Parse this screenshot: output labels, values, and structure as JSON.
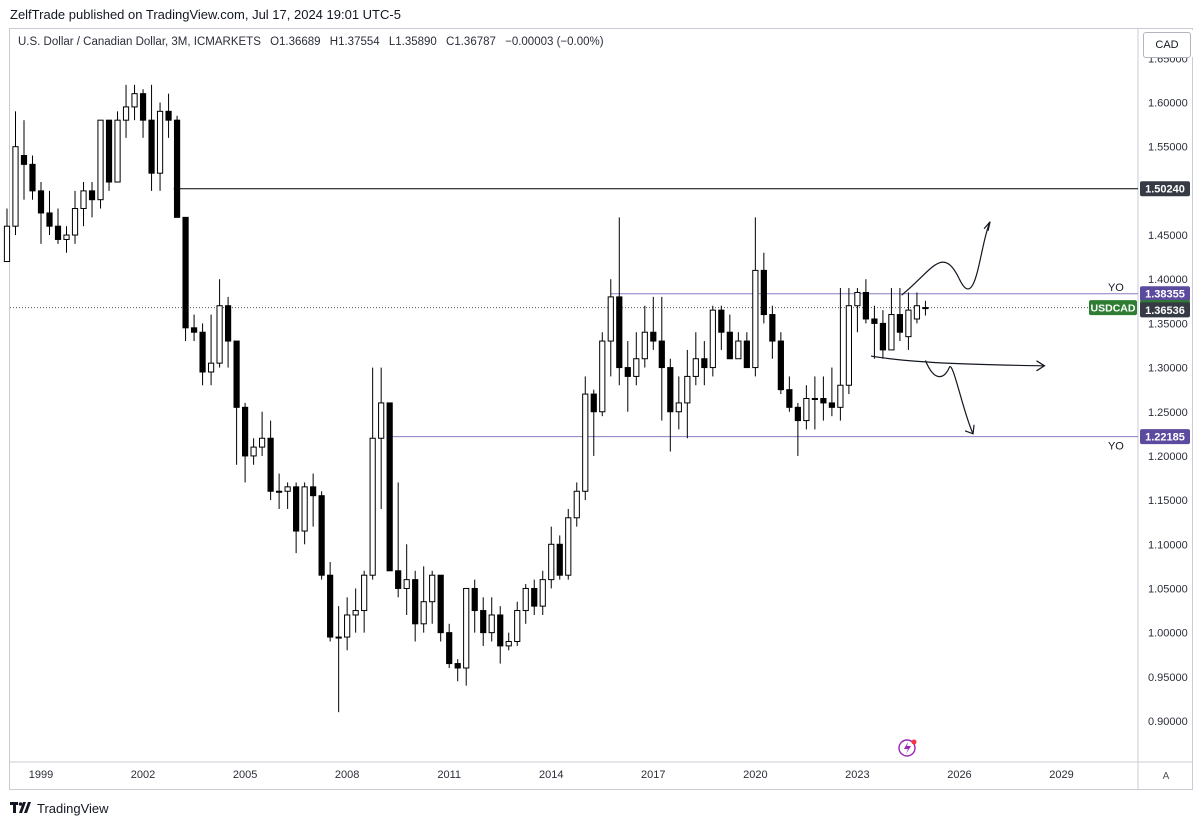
{
  "publisher_line": "ZelfTrade published on TradingView.com, Jul 17, 2024 19:01 UTC-5",
  "legend": {
    "symbol": "U.S. Dollar / Canadian Dollar, 3M, ICMARKETS",
    "open": "O1.36689",
    "high": "H1.37554",
    "low": "L1.35890",
    "close": "C1.36787",
    "change": "−0.00003 (−0.00%)"
  },
  "currency_button": "CAD",
  "axis_mode_button": "A",
  "footer_brand": "TradingView",
  "colors": {
    "candle_up_fill": "#ffffff",
    "candle_down_fill": "#000000",
    "candle_border": "#000000",
    "level_line_purple": "#8e7cc3",
    "level_line_black": "#000000",
    "label_dark": "#363a45",
    "label_price_green": "#2e7d32",
    "label_purple": "#5b4a9e"
  },
  "chart_data": {
    "type": "candlestick",
    "interval": "3M",
    "y_axis": {
      "min": 0.88,
      "max": 1.66,
      "ticks": [
        1.6,
        1.55,
        1.5,
        1.45,
        1.4,
        1.35,
        1.3,
        1.25,
        1.2,
        1.15,
        1.1,
        1.05,
        1.0,
        0.95,
        0.9
      ],
      "tick_labels": [
        "1.60000",
        "1.55000",
        "1.50000",
        "1.45000",
        "1.40000",
        "1.35000",
        "1.30000",
        "1.25000",
        "1.20000",
        "1.15000",
        "1.10000",
        "1.05000",
        "1.00000",
        "0.95000",
        "0.90000"
      ]
    },
    "x_axis": {
      "tick_years": [
        1999,
        2002,
        2005,
        2008,
        2011,
        2014,
        2017,
        2020,
        2023,
        2026,
        2029
      ],
      "tick_labels": [
        "1999",
        "2002",
        "2005",
        "2008",
        "2011",
        "2014",
        "2017",
        "2020",
        "2023",
        "2026",
        "2029"
      ]
    },
    "horizontal_levels": [
      {
        "price": 1.5024,
        "label": "1.50240",
        "style": "black",
        "from_year": 2002.9
      },
      {
        "price": 1.38355,
        "label": "1.38355",
        "style": "purple",
        "from_year": 2015.75
      },
      {
        "price": 1.22185,
        "label": "1.22185",
        "style": "purple",
        "from_year": 2009.25
      }
    ],
    "price_labels": [
      {
        "price": 1.36787,
        "label": "1.36787",
        "symbol": "USDCAD"
      },
      {
        "price": 1.36536,
        "label": "1.36536"
      }
    ],
    "text_annotations": [
      {
        "text": "YO",
        "price": 1.212,
        "year": 2030.6
      },
      {
        "text": "YO",
        "price": 1.391,
        "year": 2030.6
      }
    ],
    "candles": [
      {
        "t": 1998.0,
        "o": 1.42,
        "h": 1.48,
        "l": 1.42,
        "c": 1.46
      },
      {
        "t": 1998.25,
        "o": 1.46,
        "h": 1.59,
        "l": 1.45,
        "c": 1.55
      },
      {
        "t": 1998.5,
        "o": 1.54,
        "h": 1.58,
        "l": 1.49,
        "c": 1.53
      },
      {
        "t": 1998.75,
        "o": 1.53,
        "h": 1.54,
        "l": 1.49,
        "c": 1.5
      },
      {
        "t": 1999.0,
        "o": 1.5,
        "h": 1.51,
        "l": 1.44,
        "c": 1.475
      },
      {
        "t": 1999.25,
        "o": 1.475,
        "h": 1.5,
        "l": 1.45,
        "c": 1.46
      },
      {
        "t": 1999.5,
        "o": 1.46,
        "h": 1.48,
        "l": 1.44,
        "c": 1.445
      },
      {
        "t": 1999.75,
        "o": 1.445,
        "h": 1.46,
        "l": 1.43,
        "c": 1.45
      },
      {
        "t": 2000.0,
        "o": 1.45,
        "h": 1.5,
        "l": 1.44,
        "c": 1.48
      },
      {
        "t": 2000.25,
        "o": 1.48,
        "h": 1.51,
        "l": 1.46,
        "c": 1.5
      },
      {
        "t": 2000.5,
        "o": 1.5,
        "h": 1.51,
        "l": 1.47,
        "c": 1.49
      },
      {
        "t": 2000.75,
        "o": 1.49,
        "h": 1.58,
        "l": 1.48,
        "c": 1.58
      },
      {
        "t": 2001.0,
        "o": 1.58,
        "h": 1.58,
        "l": 1.5,
        "c": 1.51
      },
      {
        "t": 2001.25,
        "o": 1.51,
        "h": 1.59,
        "l": 1.51,
        "c": 1.58
      },
      {
        "t": 2001.5,
        "o": 1.58,
        "h": 1.62,
        "l": 1.56,
        "c": 1.595
      },
      {
        "t": 2001.75,
        "o": 1.595,
        "h": 1.62,
        "l": 1.58,
        "c": 1.61
      },
      {
        "t": 2002.0,
        "o": 1.61,
        "h": 1.615,
        "l": 1.56,
        "c": 1.58
      },
      {
        "t": 2002.25,
        "o": 1.58,
        "h": 1.62,
        "l": 1.5,
        "c": 1.52
      },
      {
        "t": 2002.5,
        "o": 1.52,
        "h": 1.6,
        "l": 1.5,
        "c": 1.59
      },
      {
        "t": 2002.75,
        "o": 1.59,
        "h": 1.61,
        "l": 1.56,
        "c": 1.58
      },
      {
        "t": 2003.0,
        "o": 1.58,
        "h": 1.585,
        "l": 1.47,
        "c": 1.47
      },
      {
        "t": 2003.25,
        "o": 1.47,
        "h": 1.47,
        "l": 1.33,
        "c": 1.345
      },
      {
        "t": 2003.5,
        "o": 1.345,
        "h": 1.36,
        "l": 1.33,
        "c": 1.34
      },
      {
        "t": 2003.75,
        "o": 1.34,
        "h": 1.35,
        "l": 1.28,
        "c": 1.295
      },
      {
        "t": 2004.0,
        "o": 1.295,
        "h": 1.36,
        "l": 1.28,
        "c": 1.305
      },
      {
        "t": 2004.25,
        "o": 1.305,
        "h": 1.4,
        "l": 1.3,
        "c": 1.37
      },
      {
        "t": 2004.5,
        "o": 1.37,
        "h": 1.38,
        "l": 1.3,
        "c": 1.33
      },
      {
        "t": 2004.75,
        "o": 1.33,
        "h": 1.33,
        "l": 1.19,
        "c": 1.255
      },
      {
        "t": 2005.0,
        "o": 1.255,
        "h": 1.26,
        "l": 1.17,
        "c": 1.2
      },
      {
        "t": 2005.25,
        "o": 1.2,
        "h": 1.22,
        "l": 1.19,
        "c": 1.21
      },
      {
        "t": 2005.5,
        "o": 1.21,
        "h": 1.25,
        "l": 1.2,
        "c": 1.22
      },
      {
        "t": 2005.75,
        "o": 1.22,
        "h": 1.24,
        "l": 1.15,
        "c": 1.16
      },
      {
        "t": 2006.0,
        "o": 1.16,
        "h": 1.18,
        "l": 1.14,
        "c": 1.16
      },
      {
        "t": 2006.25,
        "o": 1.16,
        "h": 1.17,
        "l": 1.14,
        "c": 1.165
      },
      {
        "t": 2006.5,
        "o": 1.165,
        "h": 1.17,
        "l": 1.09,
        "c": 1.115
      },
      {
        "t": 2006.75,
        "o": 1.115,
        "h": 1.17,
        "l": 1.1,
        "c": 1.165
      },
      {
        "t": 2007.0,
        "o": 1.165,
        "h": 1.18,
        "l": 1.12,
        "c": 1.155
      },
      {
        "t": 2007.25,
        "o": 1.155,
        "h": 1.16,
        "l": 1.06,
        "c": 1.065
      },
      {
        "t": 2007.5,
        "o": 1.065,
        "h": 1.08,
        "l": 0.99,
        "c": 0.995
      },
      {
        "t": 2007.75,
        "o": 0.995,
        "h": 1.03,
        "l": 0.91,
        "c": 0.995
      },
      {
        "t": 2008.0,
        "o": 0.995,
        "h": 1.04,
        "l": 0.98,
        "c": 1.02
      },
      {
        "t": 2008.25,
        "o": 1.02,
        "h": 1.05,
        "l": 1.0,
        "c": 1.025
      },
      {
        "t": 2008.5,
        "o": 1.025,
        "h": 1.07,
        "l": 1.0,
        "c": 1.065
      },
      {
        "t": 2008.75,
        "o": 1.065,
        "h": 1.3,
        "l": 1.06,
        "c": 1.22
      },
      {
        "t": 2009.0,
        "o": 1.22,
        "h": 1.3,
        "l": 1.14,
        "c": 1.26
      },
      {
        "t": 2009.25,
        "o": 1.26,
        "h": 1.26,
        "l": 1.07,
        "c": 1.07
      },
      {
        "t": 2009.5,
        "o": 1.07,
        "h": 1.17,
        "l": 1.04,
        "c": 1.05
      },
      {
        "t": 2009.75,
        "o": 1.05,
        "h": 1.1,
        "l": 1.02,
        "c": 1.06
      },
      {
        "t": 2010.0,
        "o": 1.06,
        "h": 1.07,
        "l": 0.99,
        "c": 1.01
      },
      {
        "t": 2010.25,
        "o": 1.01,
        "h": 1.075,
        "l": 1.0,
        "c": 1.035
      },
      {
        "t": 2010.5,
        "o": 1.035,
        "h": 1.07,
        "l": 1.01,
        "c": 1.065
      },
      {
        "t": 2010.75,
        "o": 1.065,
        "h": 1.06,
        "l": 0.99,
        "c": 1.0
      },
      {
        "t": 2011.0,
        "o": 1.0,
        "h": 1.01,
        "l": 0.96,
        "c": 0.965
      },
      {
        "t": 2011.25,
        "o": 0.965,
        "h": 0.97,
        "l": 0.945,
        "c": 0.96
      },
      {
        "t": 2011.5,
        "o": 0.96,
        "h": 1.05,
        "l": 0.94,
        "c": 1.05
      },
      {
        "t": 2011.75,
        "o": 1.05,
        "h": 1.06,
        "l": 1.0,
        "c": 1.025
      },
      {
        "t": 2012.0,
        "o": 1.025,
        "h": 1.04,
        "l": 0.985,
        "c": 1.0
      },
      {
        "t": 2012.25,
        "o": 1.0,
        "h": 1.04,
        "l": 0.99,
        "c": 1.02
      },
      {
        "t": 2012.5,
        "o": 1.02,
        "h": 1.03,
        "l": 0.965,
        "c": 0.985
      },
      {
        "t": 2012.75,
        "o": 0.985,
        "h": 1.0,
        "l": 0.98,
        "c": 0.99
      },
      {
        "t": 2013.0,
        "o": 0.99,
        "h": 1.035,
        "l": 0.985,
        "c": 1.025
      },
      {
        "t": 2013.25,
        "o": 1.025,
        "h": 1.055,
        "l": 1.01,
        "c": 1.05
      },
      {
        "t": 2013.5,
        "o": 1.05,
        "h": 1.06,
        "l": 1.02,
        "c": 1.03
      },
      {
        "t": 2013.75,
        "o": 1.03,
        "h": 1.07,
        "l": 1.02,
        "c": 1.06
      },
      {
        "t": 2014.0,
        "o": 1.06,
        "h": 1.12,
        "l": 1.05,
        "c": 1.1
      },
      {
        "t": 2014.25,
        "o": 1.1,
        "h": 1.11,
        "l": 1.06,
        "c": 1.065
      },
      {
        "t": 2014.5,
        "o": 1.065,
        "h": 1.14,
        "l": 1.06,
        "c": 1.13
      },
      {
        "t": 2014.75,
        "o": 1.13,
        "h": 1.17,
        "l": 1.12,
        "c": 1.16
      },
      {
        "t": 2015.0,
        "o": 1.16,
        "h": 1.29,
        "l": 1.15,
        "c": 1.27
      },
      {
        "t": 2015.25,
        "o": 1.27,
        "h": 1.275,
        "l": 1.2,
        "c": 1.25
      },
      {
        "t": 2015.5,
        "o": 1.25,
        "h": 1.34,
        "l": 1.245,
        "c": 1.33
      },
      {
        "t": 2015.75,
        "o": 1.33,
        "h": 1.4,
        "l": 1.29,
        "c": 1.38
      },
      {
        "t": 2016.0,
        "o": 1.38,
        "h": 1.47,
        "l": 1.28,
        "c": 1.3
      },
      {
        "t": 2016.25,
        "o": 1.3,
        "h": 1.33,
        "l": 1.25,
        "c": 1.29
      },
      {
        "t": 2016.5,
        "o": 1.29,
        "h": 1.34,
        "l": 1.28,
        "c": 1.31
      },
      {
        "t": 2016.75,
        "o": 1.31,
        "h": 1.37,
        "l": 1.3,
        "c": 1.34
      },
      {
        "t": 2017.0,
        "o": 1.34,
        "h": 1.38,
        "l": 1.32,
        "c": 1.33
      },
      {
        "t": 2017.25,
        "o": 1.33,
        "h": 1.38,
        "l": 1.24,
        "c": 1.3
      },
      {
        "t": 2017.5,
        "o": 1.3,
        "h": 1.31,
        "l": 1.205,
        "c": 1.25
      },
      {
        "t": 2017.75,
        "o": 1.25,
        "h": 1.29,
        "l": 1.23,
        "c": 1.26
      },
      {
        "t": 2018.0,
        "o": 1.26,
        "h": 1.32,
        "l": 1.22,
        "c": 1.29
      },
      {
        "t": 2018.25,
        "o": 1.29,
        "h": 1.34,
        "l": 1.28,
        "c": 1.31
      },
      {
        "t": 2018.5,
        "o": 1.31,
        "h": 1.33,
        "l": 1.28,
        "c": 1.3
      },
      {
        "t": 2018.75,
        "o": 1.3,
        "h": 1.37,
        "l": 1.29,
        "c": 1.365
      },
      {
        "t": 2019.0,
        "o": 1.365,
        "h": 1.37,
        "l": 1.32,
        "c": 1.34
      },
      {
        "t": 2019.25,
        "o": 1.34,
        "h": 1.36,
        "l": 1.31,
        "c": 1.31
      },
      {
        "t": 2019.5,
        "o": 1.31,
        "h": 1.34,
        "l": 1.31,
        "c": 1.33
      },
      {
        "t": 2019.75,
        "o": 1.33,
        "h": 1.34,
        "l": 1.3,
        "c": 1.3
      },
      {
        "t": 2020.0,
        "o": 1.3,
        "h": 1.47,
        "l": 1.29,
        "c": 1.41
      },
      {
        "t": 2020.25,
        "o": 1.41,
        "h": 1.43,
        "l": 1.35,
        "c": 1.36
      },
      {
        "t": 2020.5,
        "o": 1.36,
        "h": 1.37,
        "l": 1.31,
        "c": 1.33
      },
      {
        "t": 2020.75,
        "o": 1.33,
        "h": 1.34,
        "l": 1.27,
        "c": 1.275
      },
      {
        "t": 2021.0,
        "o": 1.275,
        "h": 1.29,
        "l": 1.25,
        "c": 1.255
      },
      {
        "t": 2021.25,
        "o": 1.255,
        "h": 1.26,
        "l": 1.2,
        "c": 1.24
      },
      {
        "t": 2021.5,
        "o": 1.24,
        "h": 1.28,
        "l": 1.23,
        "c": 1.265
      },
      {
        "t": 2021.75,
        "o": 1.265,
        "h": 1.29,
        "l": 1.23,
        "c": 1.265
      },
      {
        "t": 2022.0,
        "o": 1.265,
        "h": 1.29,
        "l": 1.24,
        "c": 1.26
      },
      {
        "t": 2022.25,
        "o": 1.26,
        "h": 1.3,
        "l": 1.245,
        "c": 1.255
      },
      {
        "t": 2022.5,
        "o": 1.255,
        "h": 1.39,
        "l": 1.24,
        "c": 1.28
      },
      {
        "t": 2022.75,
        "o": 1.28,
        "h": 1.39,
        "l": 1.27,
        "c": 1.37
      },
      {
        "t": 2023.0,
        "o": 1.37,
        "h": 1.39,
        "l": 1.34,
        "c": 1.385
      },
      {
        "t": 2023.25,
        "o": 1.385,
        "h": 1.4,
        "l": 1.35,
        "c": 1.355
      },
      {
        "t": 2023.5,
        "o": 1.355,
        "h": 1.37,
        "l": 1.31,
        "c": 1.35
      },
      {
        "t": 2023.75,
        "o": 1.35,
        "h": 1.365,
        "l": 1.31,
        "c": 1.32
      },
      {
        "t": 2024.0,
        "o": 1.32,
        "h": 1.39,
        "l": 1.32,
        "c": 1.36
      },
      {
        "t": 2024.25,
        "o": 1.36,
        "h": 1.39,
        "l": 1.33,
        "c": 1.34
      },
      {
        "t": 2024.5,
        "o": 1.335,
        "h": 1.385,
        "l": 1.32,
        "c": 1.365
      },
      {
        "t": 2024.75,
        "o": 1.355,
        "h": 1.385,
        "l": 1.35,
        "c": 1.37
      },
      {
        "t": 2025.0,
        "o": 1.36689,
        "h": 1.37554,
        "l": 1.3589,
        "c": 1.36787
      }
    ]
  }
}
